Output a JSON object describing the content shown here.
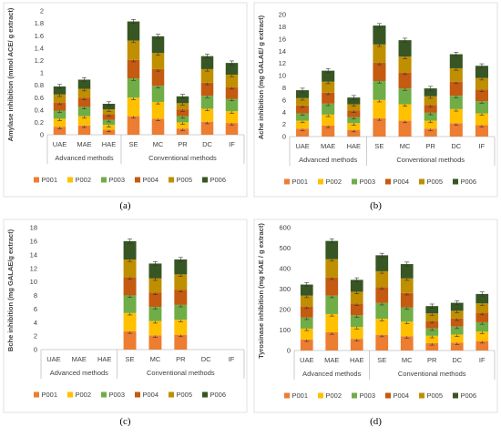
{
  "figure": {
    "colors": [
      "#ED7D31",
      "#FFC000",
      "#70AD47",
      "#C55A11",
      "#BF8F00",
      "#375623"
    ],
    "categories": [
      "UAE",
      "MAE",
      "HAE",
      "SE",
      "MC",
      "PR",
      "DC",
      "IF"
    ],
    "group_labels": [
      "Advanced methods",
      "Conventional methods"
    ],
    "groups": [
      [
        0,
        2
      ],
      [
        3,
        7
      ]
    ],
    "series_names": [
      "P001",
      "P002",
      "P003",
      "P004",
      "P005",
      "P006"
    ]
  },
  "chart_data": [
    {
      "type": "bar",
      "stacked": true,
      "panel": "(a)",
      "ylabel": "Amylase inhibition (mmol ACE/ g extract)",
      "ylim": [
        0,
        2
      ],
      "ytick_step": 0.2,
      "yticks": [
        "0",
        "0.2",
        "0.4",
        "0.6",
        "0.8",
        "1",
        "1.2",
        "1.4",
        "1.6",
        "1.8",
        "2"
      ],
      "categories": [
        "UAE",
        "MAE",
        "HAE",
        "SE",
        "MC",
        "PR",
        "DC",
        "IF"
      ],
      "totals": [
        0.78,
        0.89,
        0.5,
        1.83,
        1.59,
        0.62,
        1.27,
        1.16
      ],
      "series": [
        {
          "name": "P001",
          "values": [
            0.13,
            0.15,
            0.08,
            0.3,
            0.26,
            0.1,
            0.21,
            0.19
          ]
        },
        {
          "name": "P002",
          "values": [
            0.13,
            0.15,
            0.08,
            0.3,
            0.27,
            0.1,
            0.21,
            0.19
          ]
        },
        {
          "name": "P003",
          "values": [
            0.13,
            0.15,
            0.08,
            0.31,
            0.26,
            0.1,
            0.21,
            0.2
          ]
        },
        {
          "name": "P004",
          "values": [
            0.13,
            0.15,
            0.09,
            0.3,
            0.27,
            0.11,
            0.21,
            0.19
          ]
        },
        {
          "name": "P005",
          "values": [
            0.13,
            0.14,
            0.08,
            0.31,
            0.26,
            0.1,
            0.22,
            0.2
          ]
        },
        {
          "name": "P006",
          "values": [
            0.13,
            0.15,
            0.09,
            0.31,
            0.27,
            0.11,
            0.21,
            0.19
          ]
        }
      ]
    },
    {
      "type": "bar",
      "stacked": true,
      "panel": "(b)",
      "ylabel": "Ache inhibition (mg GALAE/ g extract)",
      "ylim": [
        0,
        20
      ],
      "ytick_step": 2,
      "yticks": [
        "0",
        "2",
        "4",
        "6",
        "8",
        "10",
        "12",
        "14",
        "16",
        "18",
        "20"
      ],
      "categories": [
        "UAE",
        "MAE",
        "HAE",
        "SE",
        "MC",
        "PR",
        "DC",
        "IF"
      ],
      "totals": [
        7.6,
        10.8,
        6.4,
        18.2,
        15.8,
        7.9,
        13.5,
        11.6
      ],
      "series": [
        {
          "name": "P001",
          "values": [
            1.3,
            1.8,
            1.1,
            3.0,
            2.6,
            1.3,
            2.2,
            1.9
          ]
        },
        {
          "name": "P002",
          "values": [
            1.3,
            1.8,
            1.1,
            3.0,
            2.7,
            1.3,
            2.3,
            1.9
          ]
        },
        {
          "name": "P003",
          "values": [
            1.2,
            1.8,
            1.0,
            3.1,
            2.6,
            1.3,
            2.2,
            2.0
          ]
        },
        {
          "name": "P004",
          "values": [
            1.3,
            1.8,
            1.1,
            3.0,
            2.6,
            1.3,
            2.3,
            1.9
          ]
        },
        {
          "name": "P005",
          "values": [
            1.2,
            1.8,
            1.0,
            3.0,
            2.6,
            1.4,
            2.2,
            1.9
          ]
        },
        {
          "name": "P006",
          "values": [
            1.3,
            1.8,
            1.1,
            3.1,
            2.7,
            1.3,
            2.3,
            2.0
          ]
        }
      ]
    },
    {
      "type": "bar",
      "stacked": true,
      "panel": "(c)",
      "ylabel": "Bche inhibition (mg GALAE/g extract)",
      "ylim": [
        0,
        18
      ],
      "ytick_step": 2,
      "yticks": [
        "0",
        "2",
        "4",
        "6",
        "8",
        "10",
        "12",
        "14",
        "16",
        "18"
      ],
      "categories": [
        "UAE",
        "MAE",
        "HAE",
        "SE",
        "MC",
        "PR",
        "DC",
        "IF"
      ],
      "totals": [
        0,
        0,
        0,
        16.0,
        12.7,
        13.3,
        0,
        0
      ],
      "series": [
        {
          "name": "P001",
          "values": [
            0,
            0,
            0,
            2.7,
            2.1,
            2.2,
            0,
            0
          ]
        },
        {
          "name": "P002",
          "values": [
            0,
            0,
            0,
            2.7,
            2.1,
            2.2,
            0,
            0
          ]
        },
        {
          "name": "P003",
          "values": [
            0,
            0,
            0,
            2.6,
            2.1,
            2.2,
            0,
            0
          ]
        },
        {
          "name": "P004",
          "values": [
            0,
            0,
            0,
            2.7,
            2.1,
            2.2,
            0,
            0
          ]
        },
        {
          "name": "P005",
          "values": [
            0,
            0,
            0,
            2.6,
            2.1,
            2.3,
            0,
            0
          ]
        },
        {
          "name": "P006",
          "values": [
            0,
            0,
            0,
            2.7,
            2.2,
            2.2,
            0,
            0
          ]
        }
      ]
    },
    {
      "type": "bar",
      "stacked": true,
      "panel": "(d)",
      "ylabel": "Tyrosinase inhibition (mg KAE / g extract)",
      "ylim": [
        0,
        600
      ],
      "ytick_step": 100,
      "yticks": [
        "0",
        "100",
        "200",
        "300",
        "400",
        "500",
        "600"
      ],
      "categories": [
        "UAE",
        "MAE",
        "HAE",
        "SE",
        "MC",
        "PR",
        "DC",
        "IF"
      ],
      "totals": [
        322,
        535,
        345,
        465,
        422,
        217,
        233,
        276
      ],
      "series": [
        {
          "name": "P001",
          "values": [
            54,
            89,
            57,
            77,
            70,
            36,
            39,
            46
          ]
        },
        {
          "name": "P002",
          "values": [
            53,
            89,
            58,
            78,
            71,
            36,
            39,
            46
          ]
        },
        {
          "name": "P003",
          "values": [
            54,
            90,
            57,
            77,
            70,
            36,
            39,
            46
          ]
        },
        {
          "name": "P004",
          "values": [
            54,
            89,
            58,
            78,
            70,
            36,
            39,
            46
          ]
        },
        {
          "name": "P005",
          "values": [
            53,
            89,
            57,
            77,
            71,
            37,
            38,
            46
          ]
        },
        {
          "name": "P006",
          "values": [
            54,
            89,
            58,
            78,
            70,
            36,
            39,
            46
          ]
        }
      ]
    }
  ]
}
